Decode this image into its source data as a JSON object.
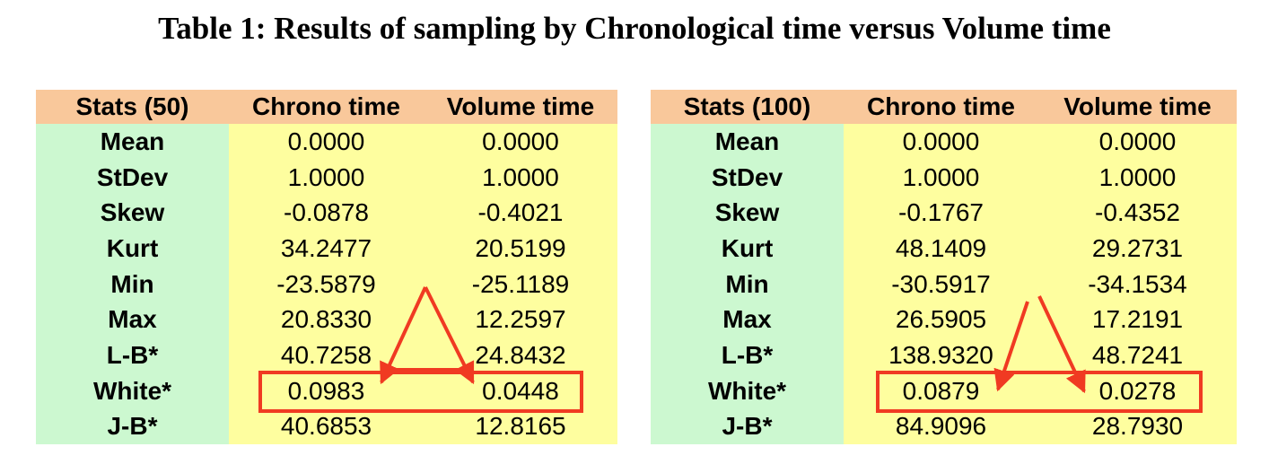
{
  "title": "Table 1:  Results of sampling by Chronological time versus Volume time",
  "tables": [
    {
      "headers": [
        "Stats (50)",
        "Chrono time",
        "Volume time"
      ],
      "rows": [
        [
          "Mean",
          "0.0000",
          "0.0000"
        ],
        [
          "StDev",
          "1.0000",
          "1.0000"
        ],
        [
          "Skew",
          "-0.0878",
          "-0.4021"
        ],
        [
          "Kurt",
          "34.2477",
          "20.5199"
        ],
        [
          "Min",
          "-23.5879",
          "-25.1189"
        ],
        [
          "Max",
          "20.8330",
          "12.2597"
        ],
        [
          "L-B*",
          "40.7258",
          "24.8432"
        ],
        [
          "White*",
          "0.0983",
          "0.0448"
        ],
        [
          "J-B*",
          "40.6853",
          "12.8165"
        ]
      ]
    },
    {
      "headers": [
        "Stats (100)",
        "Chrono time",
        "Volume time"
      ],
      "rows": [
        [
          "Mean",
          "0.0000",
          "0.0000"
        ],
        [
          "StDev",
          "1.0000",
          "1.0000"
        ],
        [
          "Skew",
          "-0.1767",
          "-0.4352"
        ],
        [
          "Kurt",
          "48.1409",
          "29.2731"
        ],
        [
          "Min",
          "-30.5917",
          "-34.1534"
        ],
        [
          "Max",
          "26.5905",
          "17.2191"
        ],
        [
          "L-B*",
          "138.9320",
          "48.7241"
        ],
        [
          "White*",
          "0.0879",
          "0.0278"
        ],
        [
          "J-B*",
          "84.9096",
          "28.7930"
        ]
      ]
    }
  ],
  "colors": {
    "header_bg": "#f9c89b",
    "label_bg": "#ccf8d0",
    "value_bg": "#fefe9f",
    "annotation": "#f03a22"
  }
}
